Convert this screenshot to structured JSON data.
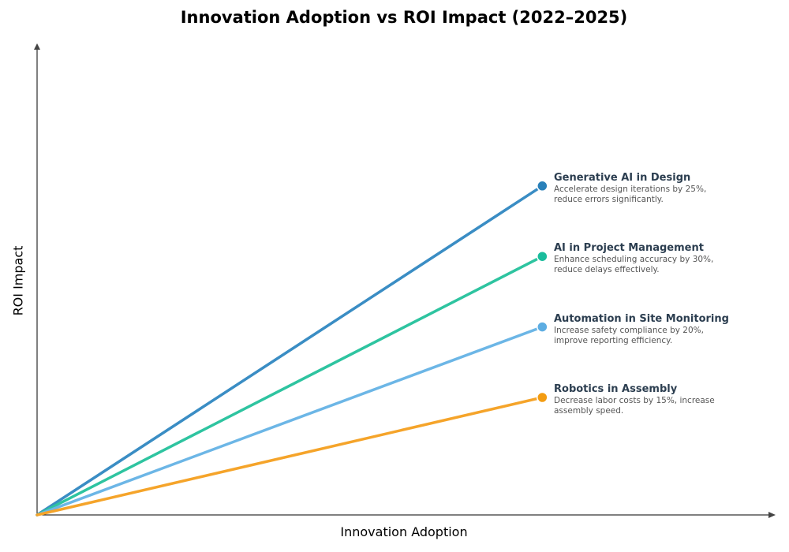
{
  "chart_data": {
    "type": "line",
    "title": "Innovation Adoption vs ROI Impact (2022–2025)",
    "xlabel": "Innovation Adoption",
    "ylabel": "ROI Impact",
    "xlim": [
      0,
      1
    ],
    "ylim": [
      0,
      1
    ],
    "grid": false,
    "ticks": false,
    "series": [
      {
        "name": "Generative AI in Design",
        "description": "Accelerate design iterations by 25%, reduce errors significantly.",
        "x": [
          0,
          0.69
        ],
        "y": [
          0,
          0.7
        ],
        "color": "#3a8dc4",
        "marker_color": "#2980b9"
      },
      {
        "name": "AI in Project Management",
        "description": "Enhance scheduling accuracy by 30%, reduce delays effectively.",
        "x": [
          0,
          0.69
        ],
        "y": [
          0,
          0.55
        ],
        "color": "#2ec4a0",
        "marker_color": "#1abc9c"
      },
      {
        "name": "Automation in Site Monitoring",
        "description": "Increase safety compliance by 20%, improve reporting efficiency.",
        "x": [
          0,
          0.69
        ],
        "y": [
          0,
          0.4
        ],
        "color": "#6cb6e6",
        "marker_color": "#5dade2"
      },
      {
        "name": "Robotics in Assembly",
        "description": "Decrease labor costs by 15%, increase assembly speed.",
        "x": [
          0,
          0.69
        ],
        "y": [
          0,
          0.25
        ],
        "color": "#f5a42a",
        "marker_color": "#f39c12"
      }
    ]
  }
}
